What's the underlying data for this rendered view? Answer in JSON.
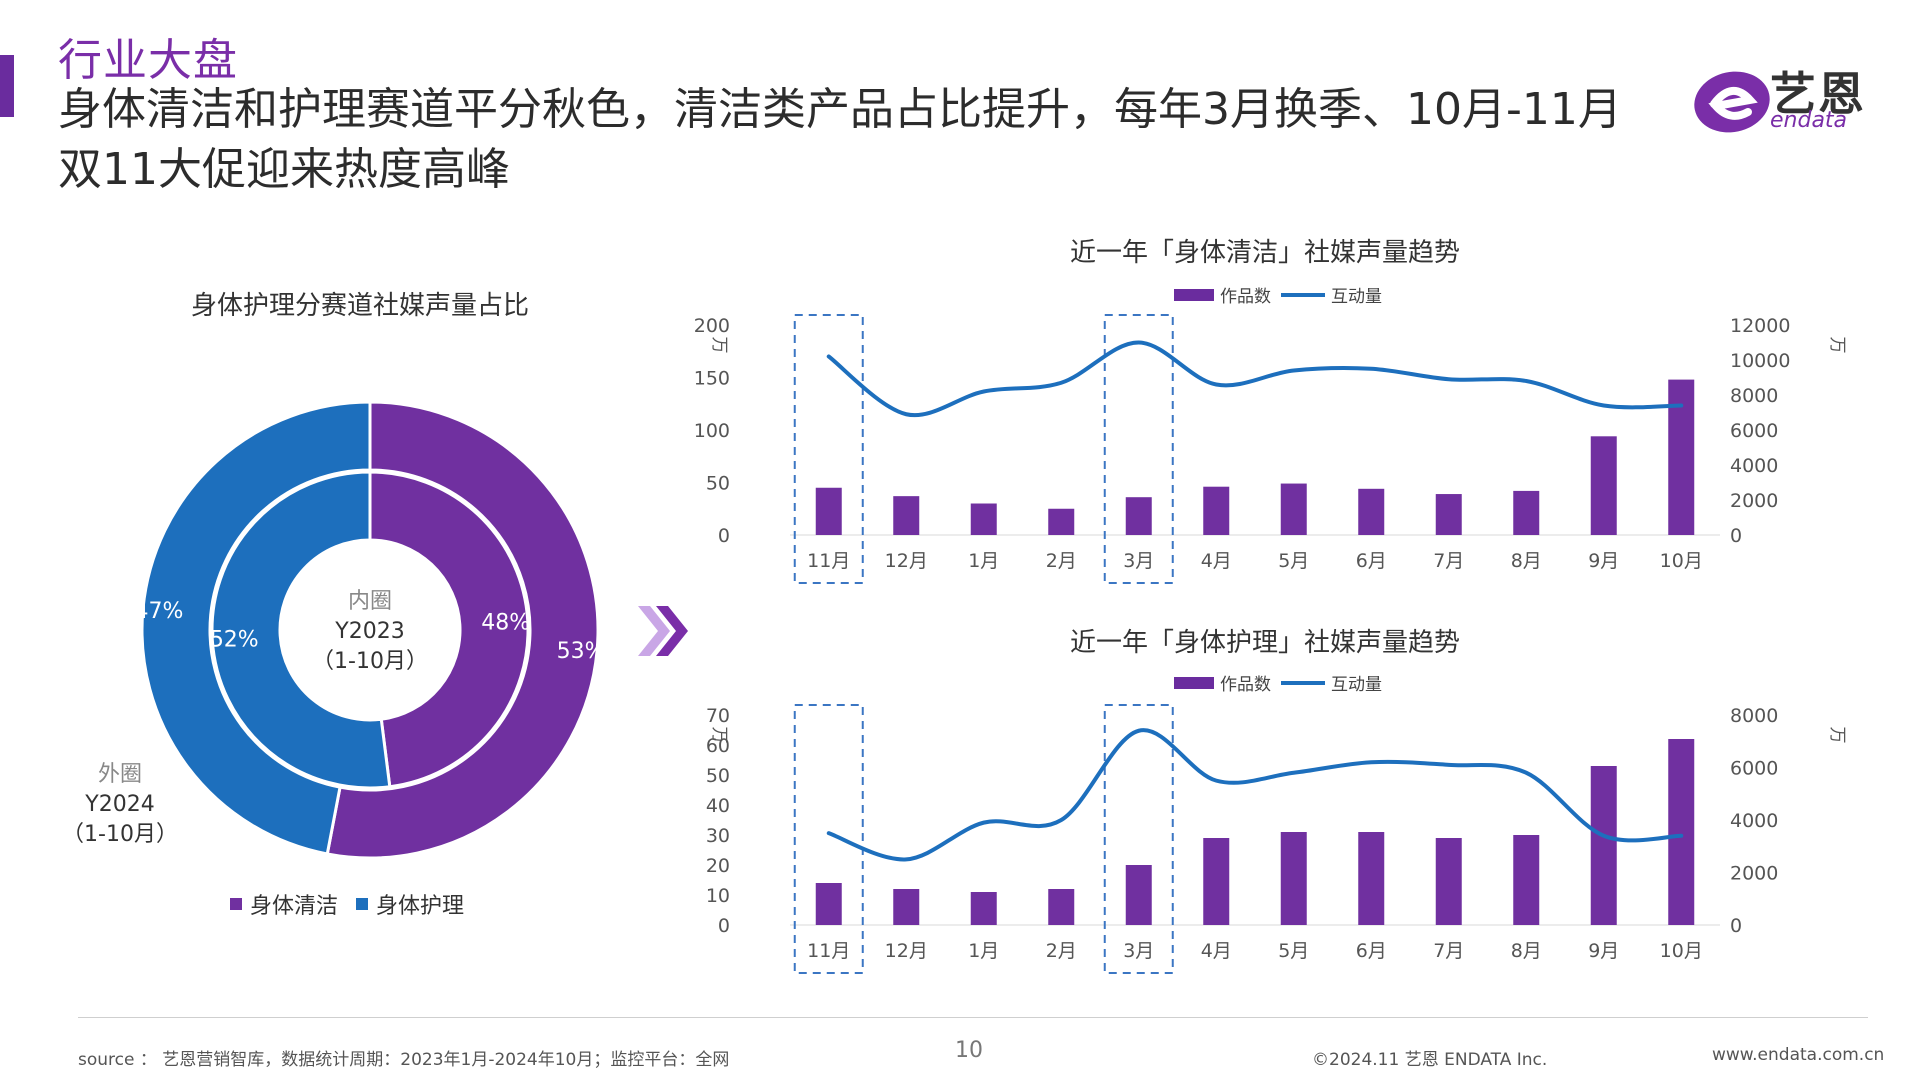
{
  "header": {
    "tag": "行业大盘",
    "title": "身体清洁和护理赛道平分秋色，清洁类产品占比提升，每年3月换季、10月-11月双11大促迎来热度高峰"
  },
  "logo": {
    "cn": "艺恩",
    "en": "endata"
  },
  "colors": {
    "accent": "#6a2c9e",
    "blue": "#1d6fbd",
    "purple": "#7030a0"
  },
  "chart_data": [
    {
      "type": "pie",
      "title": "身体护理分赛道社媒声量占比",
      "categories": [
        "身体清洁",
        "身体护理"
      ],
      "rings": [
        {
          "name": "外圈",
          "period": "Y2024",
          "range": "（1-10月）",
          "values": [
            53,
            47
          ],
          "labels": [
            "53%",
            "47%"
          ]
        },
        {
          "name": "内圈",
          "period": "Y2023",
          "range": "（1-10月）",
          "values": [
            48,
            52
          ],
          "labels": [
            "48%",
            "52%"
          ]
        }
      ]
    },
    {
      "type": "bar",
      "title": "近一年「身体清洁」社媒声量趋势",
      "categories": [
        "11月",
        "12月",
        "1月",
        "2月",
        "3月",
        "4月",
        "5月",
        "6月",
        "7月",
        "8月",
        "9月",
        "10月"
      ],
      "series": [
        {
          "name": "作品数",
          "type": "bar",
          "axis": "left",
          "values": [
            45,
            37,
            30,
            25,
            36,
            46,
            49,
            44,
            39,
            42,
            94,
            148
          ]
        },
        {
          "name": "互动量",
          "type": "line",
          "axis": "right",
          "values": [
            10200,
            6900,
            8200,
            8700,
            11000,
            8600,
            9400,
            9500,
            8900,
            8800,
            7400,
            7400
          ]
        }
      ],
      "y_left": {
        "unit": "万",
        "ticks": [
          "200",
          "150",
          "100",
          "50",
          "0"
        ],
        "range": [
          0,
          200
        ]
      },
      "y_right": {
        "unit": "万",
        "ticks": [
          "12000",
          "10000",
          "8000",
          "6000",
          "4000",
          "2000",
          "0"
        ],
        "range": [
          0,
          12000
        ]
      },
      "highlight": [
        "11月",
        "3月"
      ]
    },
    {
      "type": "bar",
      "title": "近一年「身体护理」社媒声量趋势",
      "categories": [
        "11月",
        "12月",
        "1月",
        "2月",
        "3月",
        "4月",
        "5月",
        "6月",
        "7月",
        "8月",
        "9月",
        "10月"
      ],
      "series": [
        {
          "name": "作品数",
          "type": "bar",
          "axis": "left",
          "values": [
            14,
            12,
            11,
            12,
            20,
            29,
            31,
            31,
            29,
            30,
            53,
            62
          ]
        },
        {
          "name": "互动量",
          "type": "line",
          "axis": "right",
          "values": [
            3500,
            2500,
            3900,
            4000,
            7400,
            5500,
            5800,
            6200,
            6100,
            5800,
            3400,
            3400
          ]
        }
      ],
      "y_left": {
        "unit": "万",
        "ticks": [
          "70",
          "60",
          "50",
          "40",
          "30",
          "20",
          "10",
          "0"
        ],
        "range": [
          0,
          70
        ]
      },
      "y_right": {
        "unit": "万",
        "ticks": [
          "8000",
          "6000",
          "4000",
          "2000",
          "0"
        ],
        "range": [
          0,
          8000
        ]
      },
      "highlight": [
        "11月",
        "3月"
      ]
    }
  ],
  "footer": {
    "source": "source ： 艺恩营销智库，数据统计周期：2023年1月-2024年10月；监控平台：全网",
    "page": "10",
    "copyright": "©2024.11  艺恩 ENDATA Inc.",
    "website": "www.endata.com.cn"
  }
}
